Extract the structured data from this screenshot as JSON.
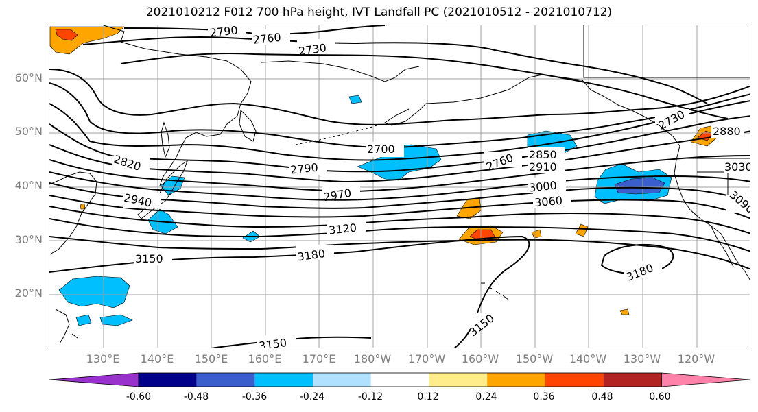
{
  "title": "2021010212 F012 700 hPa height, IVT Landfall PC (2021010512 - 2021010712)",
  "lat_labels": [
    "60°N",
    "50°N",
    "40°N",
    "30°N",
    "20°N"
  ],
  "lon_labels": [
    "130°E",
    "140°E",
    "150°E",
    "160°E",
    "170°E",
    "180°W",
    "170°W",
    "160°W",
    "150°W",
    "140°W",
    "130°W",
    "120°W"
  ],
  "contour_labels": [
    "2790",
    "2760",
    "2730",
    "2700",
    "2760",
    "2850",
    "2910",
    "2730",
    "2880",
    "3030",
    "2820",
    "2790",
    "2970",
    "3000",
    "3060",
    "2940",
    "3120",
    "3090",
    "3150",
    "3180",
    "3180",
    "3150",
    "3150"
  ],
  "colorbar": {
    "ticks": [
      "-0.60",
      "-0.48",
      "-0.36",
      "-0.24",
      "-0.12",
      "0.12",
      "0.24",
      "0.36",
      "0.48",
      "0.60"
    ],
    "colors": [
      "#9932cc",
      "#00008b",
      "#3a5fcd",
      "#00bfff",
      "#b0e2ff",
      "#ffffff",
      "#ffec8b",
      "#ffa500",
      "#ff4500",
      "#b22222",
      "#ff82ab"
    ]
  }
}
